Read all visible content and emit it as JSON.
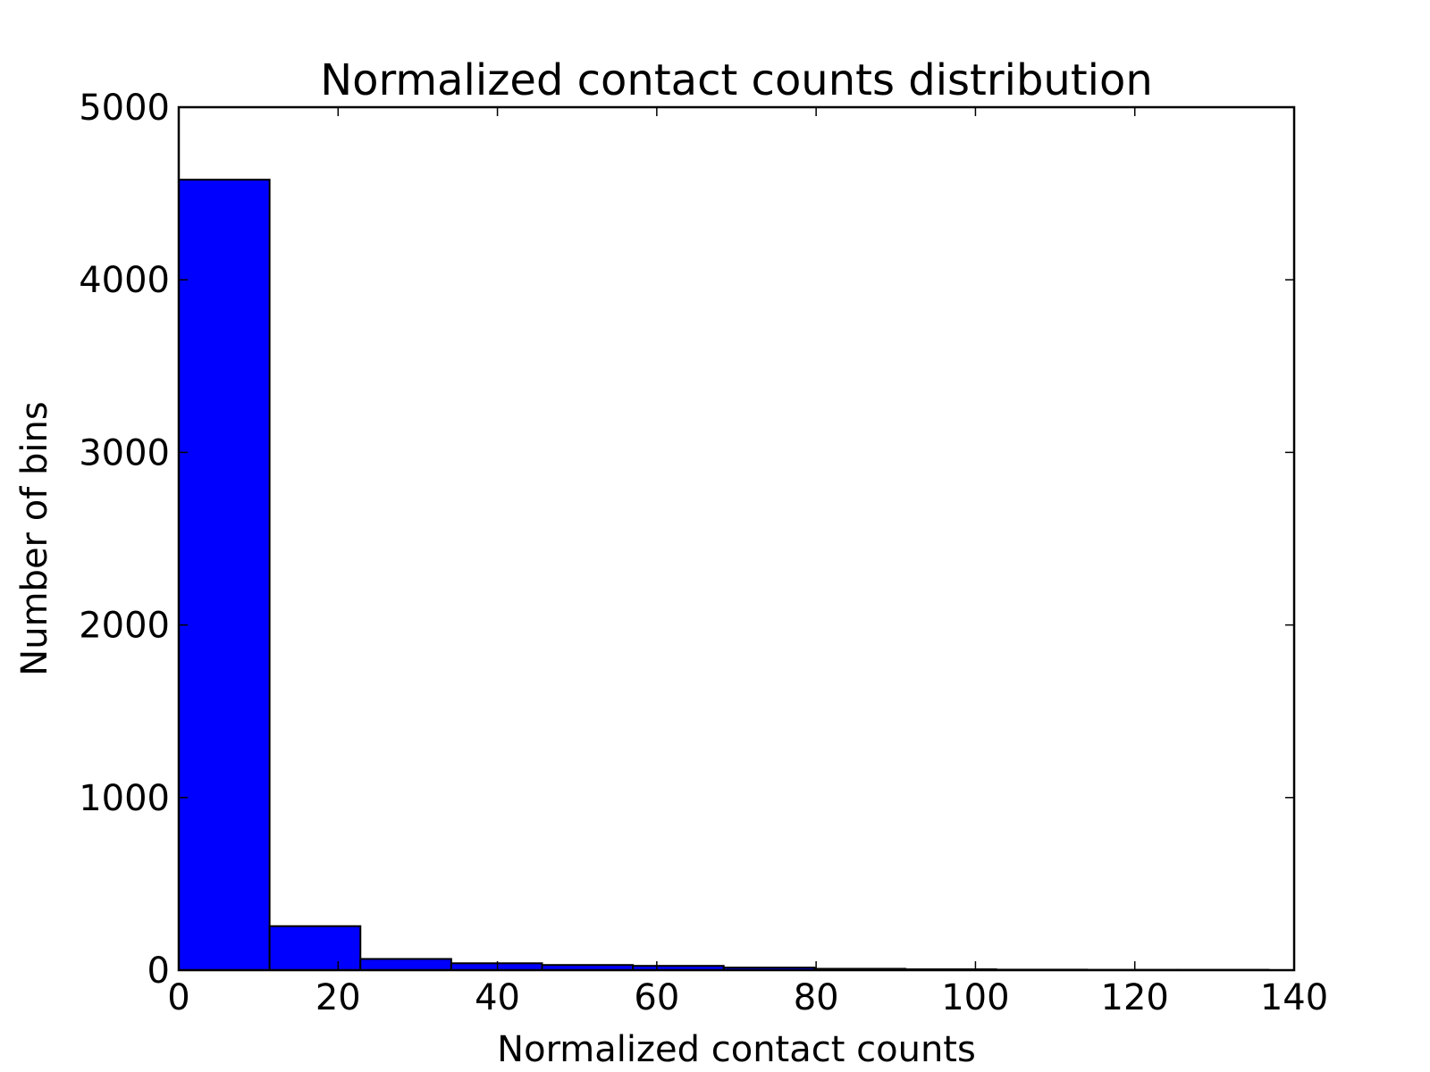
{
  "chart_data": {
    "type": "bar",
    "subtype": "histogram",
    "title": "Normalized contact counts distribution",
    "xlabel": "Normalized contact counts",
    "ylabel": "Number of bins",
    "xlim": [
      0,
      140
    ],
    "ylim": [
      0,
      5000
    ],
    "xticks": [
      0,
      20,
      40,
      60,
      80,
      100,
      120,
      140
    ],
    "yticks": [
      0,
      1000,
      2000,
      3000,
      4000,
      5000
    ],
    "bin_edges": [
      0,
      11.4,
      22.8,
      34.2,
      45.6,
      57.0,
      68.4,
      79.8,
      91.2,
      102.6,
      114.0,
      125.4,
      136.8
    ],
    "values": [
      4580,
      255,
      65,
      40,
      30,
      25,
      15,
      8,
      5,
      3,
      2,
      2
    ],
    "grid": false,
    "colors": {
      "bar_fill": "#0000ff",
      "bar_edge": "#000000",
      "axes": "#000000",
      "background": "#ffffff"
    }
  }
}
